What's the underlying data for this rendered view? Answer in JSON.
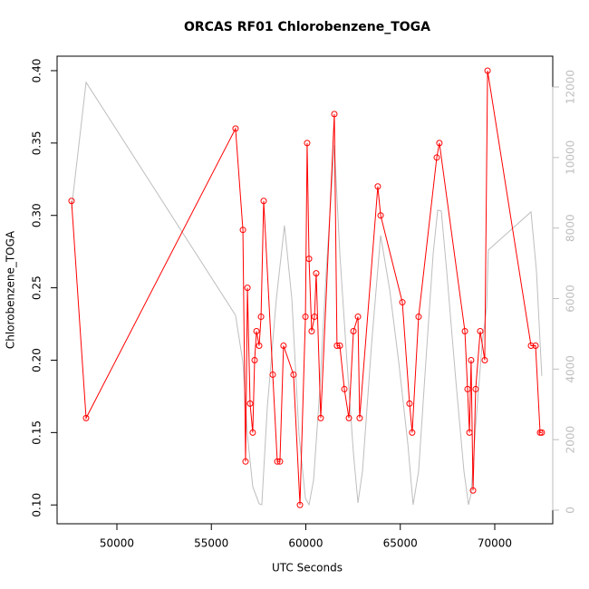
{
  "chart_data": {
    "type": "line",
    "title": "ORCAS RF01 Chlorobenzene_TOGA",
    "x_label": "UTC Seconds",
    "y_label": "Chlorobenzene_TOGA",
    "xlim": [
      46835,
      73070
    ],
    "ylim": [
      0.087,
      0.41
    ],
    "y2lim": [
      -386,
      12874
    ],
    "xticks": [
      50000,
      55000,
      60000,
      65000,
      70000
    ],
    "yticks": [
      {
        "value": 0.1,
        "label": "0.10"
      },
      0.15,
      {
        "value": 0.2,
        "label": "0.20"
      },
      0.25,
      {
        "value": 0.3,
        "label": "0.30"
      },
      0.35,
      {
        "value": 0.4,
        "label": "0.40"
      }
    ],
    "y2ticks": [
      0,
      2000,
      4000,
      6000,
      8000,
      10000,
      12000
    ],
    "series": [
      {
        "color": "#bebebe",
        "axis": "y2",
        "x": [
          47600,
          48370,
          56280,
          56670,
          56910,
          57190,
          57530,
          57670,
          57960,
          58440,
          58870,
          59260,
          59640,
          59980,
          60170,
          60410,
          60740,
          61080,
          61510,
          61800,
          62180,
          62520,
          62760,
          63000,
          63480,
          63960,
          64440,
          64920,
          65400,
          65680,
          65970,
          66350,
          66740,
          66980,
          67170,
          67460,
          67940,
          68370,
          68610,
          68750,
          68990,
          69330,
          69570,
          69660,
          71920,
          72210,
          72490
        ],
        "values": [
          8560,
          12134,
          5527,
          4190,
          2134,
          668,
          180,
          154,
          2905,
          5990,
          8072,
          5990,
          2134,
          334,
          154,
          848,
          3419,
          6761,
          10360,
          7275,
          4190,
          1620,
          206,
          1105,
          4704,
          7789,
          6247,
          4190,
          1877,
          154,
          1105,
          4190,
          7275,
          8509,
          8483,
          6761,
          3676,
          1105,
          154,
          463,
          2391,
          4704,
          5733,
          7378,
          8458,
          6761,
          3805
        ]
      },
      {
        "color": "#ff0000",
        "markers": true,
        "x": [
          47600,
          48370,
          56280,
          56670,
          56810,
          56910,
          57050,
          57190,
          57290,
          57390,
          57530,
          57630,
          57770,
          58250,
          58490,
          58630,
          58820,
          59350,
          59690,
          59980,
          60070,
          60170,
          60310,
          60460,
          60550,
          60790,
          61510,
          61650,
          61800,
          62040,
          62280,
          62520,
          62760,
          62850,
          63810,
          63960,
          65110,
          65490,
          65630,
          65970,
          66930,
          67070,
          68420,
          68560,
          68660,
          68750,
          68850,
          68990,
          69230,
          69470,
          69620,
          71920,
          72160,
          72400,
          72490
        ],
        "values": [
          0.31,
          0.16,
          0.36,
          0.29,
          0.13,
          0.25,
          0.17,
          0.15,
          0.2,
          0.22,
          0.21,
          0.23,
          0.31,
          0.19,
          0.13,
          0.13,
          0.21,
          0.19,
          0.1,
          0.23,
          0.35,
          0.27,
          0.22,
          0.23,
          0.26,
          0.16,
          0.37,
          0.21,
          0.21,
          0.18,
          0.16,
          0.22,
          0.23,
          0.16,
          0.32,
          0.3,
          0.24,
          0.17,
          0.15,
          0.23,
          0.34,
          0.35,
          0.22,
          0.18,
          0.15,
          0.2,
          0.11,
          0.18,
          0.22,
          0.2,
          0.4,
          0.21,
          0.21,
          0.15,
          0.15
        ]
      }
    ]
  }
}
